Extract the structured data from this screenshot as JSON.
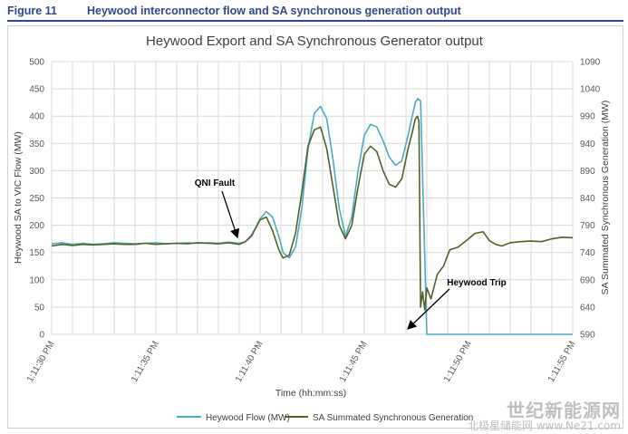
{
  "figure": {
    "number": "Figure 11",
    "title": "Heywood interconnector flow and SA synchronous generation output"
  },
  "watermark": {
    "line1": "世纪新能源网",
    "line2": "北极星储能网 www.Ne21.com"
  },
  "colors": {
    "heywood": "#4bacc6",
    "sync": "#4f6228",
    "grid": "#d9d9d9",
    "axis_text": "#595959",
    "title_text": "#404040",
    "annotation": "#000000"
  },
  "chart_data": {
    "type": "line",
    "title": "Heywood Export and SA Synchronous Generator output",
    "xlabel": "Time (hh:mm:ss)",
    "ylabel": "Heywood SA to VIC Flow (MW)",
    "y2label": "SA Summated Synchronous  Generation (MW)",
    "x_unit": "seconds after 1:11:30 PM",
    "xlim": [
      0,
      25
    ],
    "x_ticks": [
      {
        "x": 0,
        "label": "1:11:30 PM"
      },
      {
        "x": 5,
        "label": "1:11:35 PM"
      },
      {
        "x": 10,
        "label": "1:11:40 PM"
      },
      {
        "x": 15,
        "label": "1:11:45 PM"
      },
      {
        "x": 20,
        "label": "1:11:50 PM"
      },
      {
        "x": 25,
        "label": "1:11:55 PM"
      }
    ],
    "ylim": [
      0,
      500
    ],
    "y_ticks": [
      0,
      50,
      100,
      150,
      200,
      250,
      300,
      350,
      400,
      450,
      500
    ],
    "y2lim": [
      590,
      1090
    ],
    "y2_ticks": [
      590,
      640,
      690,
      740,
      790,
      840,
      890,
      940,
      990,
      1040,
      1090
    ],
    "grid": true,
    "legend_position": "bottom",
    "series": [
      {
        "name": "Heywood Flow (MW)",
        "axis": "left",
        "x": [
          0,
          0.5,
          1,
          1.5,
          2,
          2.5,
          3,
          3.5,
          4,
          4.5,
          5,
          5.5,
          6,
          6.5,
          7,
          7.5,
          8,
          8.5,
          9,
          9.3,
          9.6,
          10,
          10.3,
          10.6,
          10.9,
          11.1,
          11.4,
          11.7,
          12,
          12.3,
          12.6,
          12.9,
          13.2,
          13.5,
          13.8,
          14.1,
          14.4,
          14.7,
          15,
          15.3,
          15.6,
          15.9,
          16.2,
          16.5,
          16.8,
          17.1,
          17.3,
          17.45,
          17.55,
          17.7,
          18,
          20,
          22,
          25
        ],
        "y": [
          166,
          168,
          165,
          167,
          165,
          166,
          168,
          167,
          166,
          167,
          168,
          166,
          167,
          168,
          167,
          168,
          167,
          169,
          167,
          170,
          180,
          212,
          225,
          215,
          180,
          150,
          140,
          160,
          230,
          340,
          405,
          418,
          395,
          320,
          230,
          180,
          215,
          300,
          365,
          385,
          380,
          355,
          325,
          310,
          318,
          365,
          400,
          425,
          432,
          428,
          0,
          0,
          0,
          0
        ]
      },
      {
        "name": "SA Summated Synchronous Generation",
        "axis": "right",
        "x": [
          0,
          0.5,
          1,
          1.5,
          2,
          2.5,
          3,
          3.5,
          4,
          4.5,
          5,
          5.5,
          6,
          6.5,
          7,
          7.5,
          8,
          8.5,
          9,
          9.3,
          9.6,
          10,
          10.3,
          10.6,
          10.9,
          11.1,
          11.4,
          11.7,
          12,
          12.3,
          12.6,
          12.9,
          13.2,
          13.5,
          13.8,
          14.1,
          14.4,
          14.7,
          15,
          15.3,
          15.6,
          15.9,
          16.2,
          16.5,
          16.8,
          17.1,
          17.3,
          17.45,
          17.55,
          17.62,
          17.7,
          17.8,
          17.9,
          18,
          18.2,
          18.5,
          18.8,
          19.1,
          19.5,
          20,
          20.3,
          20.7,
          21,
          21.3,
          21.6,
          22,
          22.5,
          23,
          23.5,
          24,
          24.5,
          25
        ],
        "y": [
          752,
          755,
          753,
          755,
          754,
          755,
          756,
          755,
          755,
          757,
          755,
          756,
          757,
          756,
          758,
          757,
          756,
          758,
          755,
          760,
          772,
          800,
          805,
          780,
          745,
          730,
          735,
          775,
          850,
          935,
          965,
          970,
          930,
          860,
          790,
          765,
          790,
          860,
          920,
          935,
          925,
          890,
          865,
          860,
          875,
          930,
          960,
          985,
          990,
          980,
          640,
          668,
          635,
          675,
          655,
          700,
          715,
          745,
          750,
          765,
          775,
          778,
          762,
          755,
          752,
          758,
          760,
          761,
          760,
          765,
          768,
          767
        ]
      }
    ],
    "annotations": [
      {
        "text": "QNI Fault"
      },
      {
        "text": "Heywood Trip"
      }
    ]
  }
}
